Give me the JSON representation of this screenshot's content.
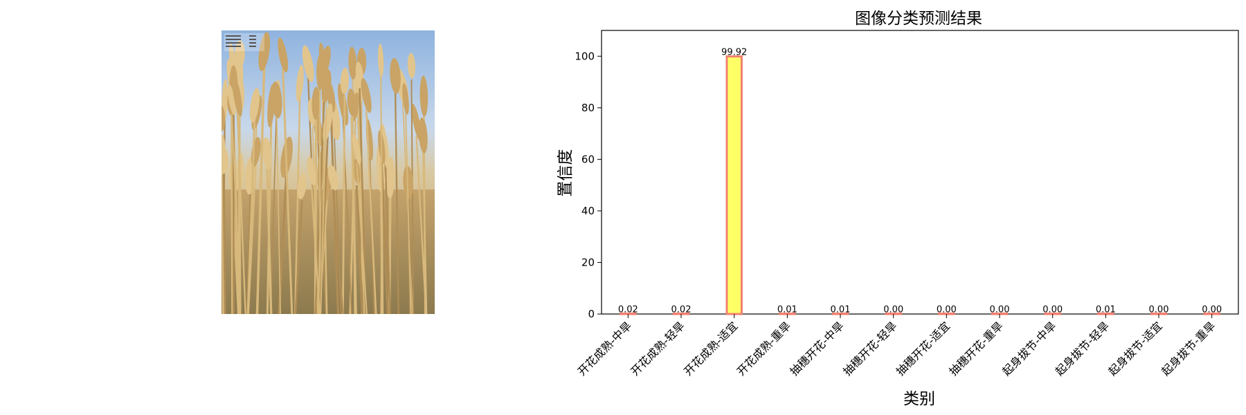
{
  "photo": {
    "subject": "wheat-field-photo",
    "sky_color": "#a9c3e3",
    "wheat_color": "#c9a86a"
  },
  "chart_data": {
    "type": "bar",
    "title": "图像分类预测结果",
    "xlabel": "类别",
    "ylabel": "置信度",
    "ylim": [
      0,
      110
    ],
    "yticks": [
      0,
      20,
      40,
      60,
      80,
      100
    ],
    "categories": [
      "开花成熟-中旱",
      "开花成熟-轻旱",
      "开花成熟-适宜",
      "开花成熟-重旱",
      "抽穗开花-中旱",
      "抽穗开花-轻旱",
      "抽穗开花-适宜",
      "抽穗开花-重旱",
      "起身拔节-中旱",
      "起身拔节-轻旱",
      "起身拔节-适宜",
      "起身拔节-重旱"
    ],
    "values": [
      0.02,
      0.02,
      99.92,
      0.01,
      0.01,
      0.0,
      0.0,
      0.0,
      0.0,
      0.01,
      0.0,
      0.0
    ],
    "value_labels": [
      "0.02",
      "0.02",
      "99.92",
      "0.01",
      "0.01",
      "0.00",
      "0.00",
      "0.00",
      "0.00",
      "0.01",
      "0.00",
      "0.00"
    ],
    "bar_fill": "#ffff66",
    "bar_edge": "#f08070",
    "grid": false
  }
}
